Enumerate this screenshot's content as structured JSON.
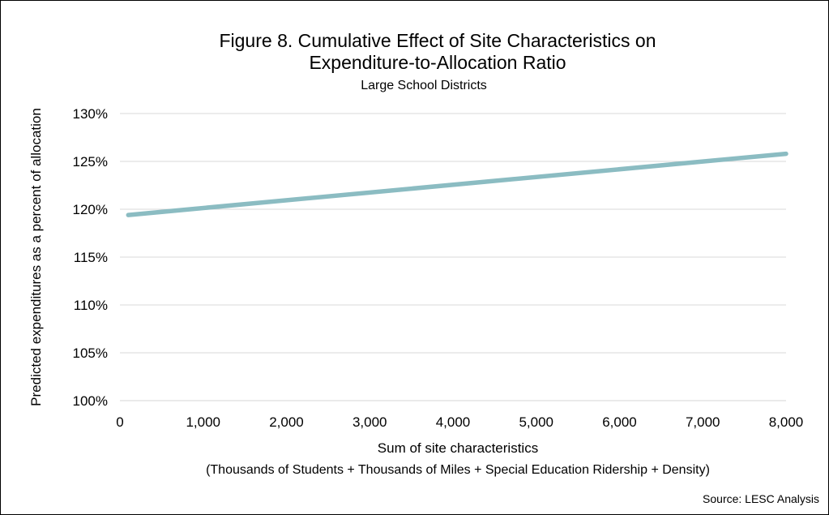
{
  "chart_data": {
    "type": "line",
    "title_line1": "Figure 8. Cumulative Effect of Site Characteristics on",
    "title_line2": "Expenditure-to-Allocation Ratio",
    "subtitle": "Large School Districts",
    "ylabel": "Predicted expenditures as a percent of allocation",
    "xlabel": "Sum of site characteristics",
    "xlabel_sub": "(Thousands of Students + Thousands of Miles + Special Education Ridership + Density)",
    "source": "Source: LESC Analysis",
    "x_ticks": [
      "0",
      "1,000",
      "2,000",
      "3,000",
      "4,000",
      "5,000",
      "6,000",
      "7,000",
      "8,000"
    ],
    "y_ticks": [
      "100%",
      "105%",
      "110%",
      "115%",
      "120%",
      "125%",
      "130%"
    ],
    "xlim": [
      0,
      8000
    ],
    "ylim": [
      100,
      130
    ],
    "grid": true,
    "line_color": "#8bbcc2",
    "series": [
      {
        "x": [
          100,
          8000
        ],
        "y": [
          119.4,
          125.8
        ]
      }
    ]
  }
}
